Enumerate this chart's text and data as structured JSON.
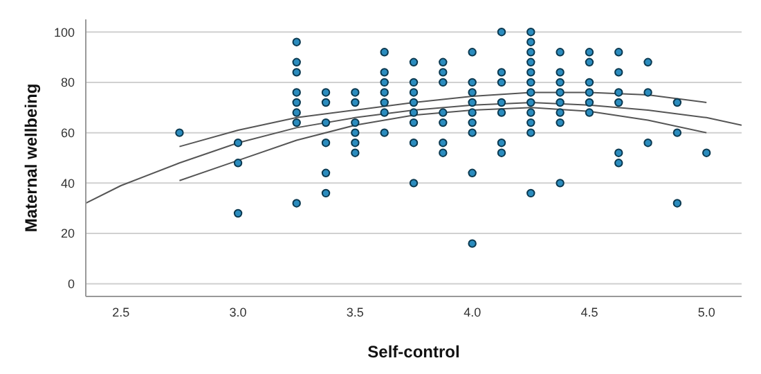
{
  "chart_data": {
    "type": "scatter",
    "xlabel": "Self-control",
    "ylabel": "Maternal wellbeing",
    "xlim": [
      2.35,
      5.15
    ],
    "xticks": [
      {
        "value": 2.5,
        "label": "2.5"
      },
      {
        "value": 3.0,
        "label": "3.0"
      },
      {
        "value": 3.5,
        "label": "3.5"
      },
      {
        "value": 4.0,
        "label": "4.0"
      },
      {
        "value": 4.5,
        "label": "4.5"
      },
      {
        "value": 5.0,
        "label": "5.0"
      }
    ],
    "ylim": [
      -5,
      105
    ],
    "yticks": [
      0,
      20,
      40,
      60,
      80,
      100
    ],
    "grid": "y",
    "legend": false,
    "series": [
      {
        "marker": "circle",
        "color": "#2b8cbe",
        "x": [
          2.75,
          3.0,
          3.0,
          3.0,
          3.25,
          3.25,
          3.25,
          3.25,
          3.25,
          3.25,
          3.25,
          3.25,
          3.375,
          3.375,
          3.375,
          3.375,
          3.375,
          3.375,
          3.5,
          3.5,
          3.5,
          3.5,
          3.5,
          3.5,
          3.625,
          3.625,
          3.625,
          3.625,
          3.625,
          3.625,
          3.625,
          3.75,
          3.75,
          3.75,
          3.75,
          3.75,
          3.75,
          3.75,
          3.75,
          3.875,
          3.875,
          3.875,
          3.875,
          3.875,
          3.875,
          3.875,
          4.0,
          4.0,
          4.0,
          4.0,
          4.0,
          4.0,
          4.0,
          4.0,
          4.0,
          4.125,
          4.125,
          4.125,
          4.125,
          4.125,
          4.125,
          4.125,
          4.25,
          4.25,
          4.25,
          4.25,
          4.25,
          4.25,
          4.25,
          4.25,
          4.25,
          4.25,
          4.25,
          4.25,
          4.375,
          4.375,
          4.375,
          4.375,
          4.375,
          4.375,
          4.375,
          4.375,
          4.5,
          4.5,
          4.5,
          4.5,
          4.5,
          4.5,
          4.625,
          4.625,
          4.625,
          4.625,
          4.625,
          4.625,
          4.75,
          4.75,
          4.75,
          4.875,
          4.875,
          4.875,
          5.0
        ],
        "values": [
          60,
          56,
          48,
          28,
          96,
          88,
          84,
          76,
          72,
          68,
          64,
          32,
          76,
          72,
          64,
          56,
          44,
          36,
          76,
          72,
          64,
          60,
          56,
          52,
          92,
          84,
          80,
          76,
          72,
          68,
          60,
          88,
          80,
          76,
          72,
          68,
          64,
          56,
          40,
          88,
          84,
          80,
          68,
          64,
          56,
          52,
          92,
          80,
          76,
          72,
          68,
          64,
          60,
          44,
          16,
          100,
          84,
          80,
          72,
          68,
          56,
          52,
          100,
          96,
          92,
          88,
          84,
          80,
          76,
          72,
          68,
          64,
          60,
          36,
          92,
          84,
          80,
          76,
          72,
          68,
          64,
          40,
          92,
          88,
          80,
          76,
          72,
          68,
          92,
          84,
          76,
          72,
          52,
          48,
          88,
          76,
          56,
          72,
          60,
          32,
          52
        ]
      },
      {
        "type": "line",
        "color": "#555555",
        "x": [
          2.35,
          2.5,
          2.75,
          3.0,
          3.25,
          3.5,
          3.75,
          4.0,
          4.25,
          4.5,
          4.75,
          5.0,
          5.15
        ],
        "values": [
          32,
          39,
          48,
          56,
          62,
          66,
          69,
          71,
          72,
          71,
          69,
          66,
          63
        ]
      },
      {
        "type": "line",
        "color": "#555555",
        "x": [
          2.75,
          3.0,
          3.25,
          3.5,
          3.75,
          4.0,
          4.25,
          4.5,
          4.75,
          5.0
        ],
        "values": [
          54.5,
          61,
          66,
          69,
          72,
          74.5,
          76,
          76,
          75,
          72
        ]
      },
      {
        "type": "line",
        "color": "#555555",
        "x": [
          2.75,
          3.0,
          3.25,
          3.5,
          3.75,
          4.0,
          4.25,
          4.5,
          4.75,
          5.0
        ],
        "values": [
          41,
          49,
          57,
          63,
          67,
          69,
          70,
          68.5,
          65,
          60
        ]
      }
    ]
  }
}
